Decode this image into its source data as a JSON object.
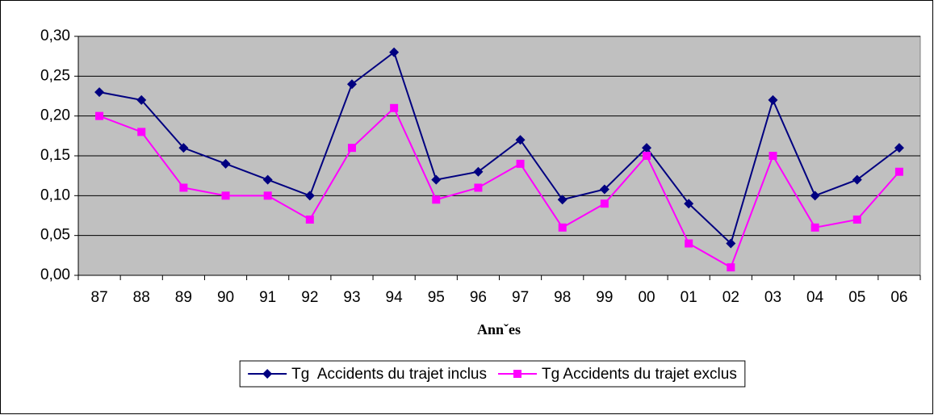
{
  "chart_data": {
    "type": "line",
    "xlabel": "Annˇes",
    "categories": [
      "87",
      "88",
      "89",
      "90",
      "91",
      "92",
      "93",
      "94",
      "95",
      "96",
      "97",
      "98",
      "99",
      "00",
      "01",
      "02",
      "03",
      "04",
      "05",
      "06"
    ],
    "series": [
      {
        "name": "Tg  Accidents du trajet inclus",
        "color": "#000080",
        "marker": "diamond",
        "values": [
          0.23,
          0.22,
          0.16,
          0.14,
          0.12,
          0.1,
          0.24,
          0.28,
          0.12,
          0.13,
          0.17,
          0.095,
          0.108,
          0.16,
          0.09,
          0.04,
          0.22,
          0.1,
          0.12,
          0.16
        ]
      },
      {
        "name": "Tg Accidents du trajet exclus",
        "color": "#ff00ff",
        "marker": "square",
        "values": [
          0.2,
          0.18,
          0.11,
          0.1,
          0.1,
          0.07,
          0.16,
          0.21,
          0.095,
          0.11,
          0.14,
          0.06,
          0.09,
          0.15,
          0.04,
          0.01,
          0.15,
          0.06,
          0.07,
          0.13
        ]
      }
    ],
    "ylim": [
      0,
      0.3
    ],
    "yticks": [
      {
        "value": 0,
        "label": "0,00"
      },
      {
        "value": 0.05,
        "label": "0,05"
      },
      {
        "value": 0.1,
        "label": "0,10"
      },
      {
        "value": 0.15,
        "label": "0,15"
      },
      {
        "value": 0.2,
        "label": "0,20"
      },
      {
        "value": 0.25,
        "label": "0,25"
      },
      {
        "value": 0.3,
        "label": "0,30"
      }
    ],
    "grid": true,
    "plot_background": "#c0c0c0",
    "legend": "bottom"
  }
}
